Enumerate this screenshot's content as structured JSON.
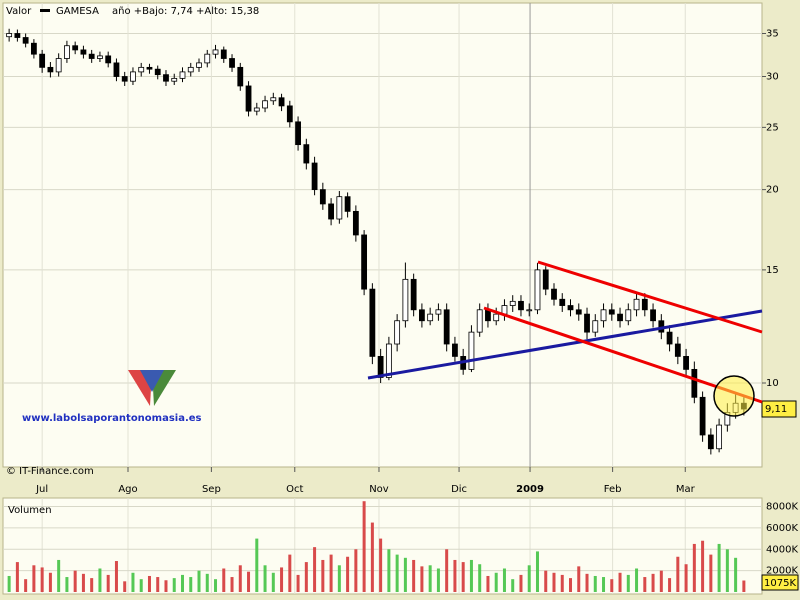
{
  "chart_data": [
    {
      "type": "candlestick",
      "title": "Valor",
      "series_name": "GAMESA",
      "subtitle": "año +Bajo: 7,74 +Alto: 15,38",
      "annotations": [
        "© IT-Finance.com",
        "www.labolsaporantonomasia.es"
      ],
      "log_scale": true,
      "grid": true,
      "xlim": [
        0,
        90
      ],
      "xticks": [
        {
          "value": 4.5,
          "label": "Jul"
        },
        {
          "value": 14.9,
          "label": "Ago"
        },
        {
          "value": 25,
          "label": "Sep"
        },
        {
          "value": 35.1,
          "label": "Oct"
        },
        {
          "value": 45.3,
          "label": "Nov"
        },
        {
          "value": 55,
          "label": "Dic"
        },
        {
          "value": 63.6,
          "label": "2009"
        },
        {
          "value": 73.6,
          "label": "Feb"
        },
        {
          "value": 82.4,
          "label": "Mar"
        }
      ],
      "ylim": [
        7.4,
        37
      ],
      "yticks": [
        10,
        15,
        20,
        25,
        30,
        35
      ],
      "open": [
        34.6,
        35,
        34.5,
        33.8,
        32.5,
        31,
        30.5,
        32,
        33.5,
        33,
        32.5,
        32,
        32.3,
        31.5,
        30,
        29.5,
        30.5,
        31,
        30.8,
        30.2,
        29.5,
        29.8,
        30.5,
        31,
        31.5,
        32.5,
        33,
        32,
        31,
        29,
        26.5,
        26.8,
        27.5,
        27.8,
        27,
        25.5,
        23.5,
        22,
        20,
        19,
        18,
        19.5,
        18.5,
        17,
        14,
        11,
        10.2,
        11.5,
        12.5,
        14.5,
        13,
        12.5,
        12.8,
        13,
        11.5,
        11,
        10.5,
        12,
        13,
        12.5,
        12.8,
        13.2,
        13.4,
        13,
        13,
        15,
        14,
        13.5,
        13.2,
        13,
        12.8,
        12,
        12.5,
        13,
        12.8,
        12.5,
        13,
        13.5,
        13,
        12.5,
        12,
        11.5,
        11,
        10.5,
        9.5,
        8.3,
        7.9,
        8.6,
        9,
        9.3
      ],
      "high": [
        35.6,
        35.5,
        35,
        34.3,
        33,
        31.6,
        32.6,
        34.1,
        34,
        33.5,
        33,
        32.8,
        32.8,
        32,
        30.5,
        31,
        31.5,
        31.4,
        31.2,
        30.7,
        30.3,
        31,
        31.5,
        32,
        33,
        33.6,
        33.4,
        32.5,
        31.5,
        29.5,
        27.3,
        28,
        28.3,
        28.2,
        27.5,
        26,
        24,
        22.5,
        20.5,
        19.4,
        19.9,
        19.8,
        18.9,
        17.3,
        14.3,
        11.3,
        11.8,
        12.8,
        15.4,
        14.8,
        13.3,
        13.1,
        13.3,
        13.3,
        11.8,
        11.3,
        12.3,
        13.3,
        13.3,
        13.1,
        13.5,
        13.7,
        13.7,
        13.3,
        15.38,
        15.2,
        14.3,
        13.8,
        13.5,
        13.3,
        13.1,
        12.8,
        13.3,
        13.3,
        13.1,
        13.3,
        13.8,
        13.8,
        13.3,
        12.8,
        12.3,
        11.8,
        11.3,
        10.8,
        9.7,
        8.5,
        8.8,
        9.3,
        9.6,
        9.5
      ],
      "low": [
        34,
        34,
        33.3,
        32,
        30.4,
        29.9,
        30,
        31.5,
        32.5,
        32,
        31.5,
        31.6,
        31,
        29.5,
        29,
        29.1,
        30,
        30.3,
        29.7,
        29,
        29.1,
        29.4,
        30,
        30.5,
        31,
        32,
        31.5,
        30.5,
        28.5,
        26,
        26.1,
        26.4,
        27.1,
        26.5,
        25,
        23,
        21.5,
        19.6,
        18.6,
        17.6,
        17.7,
        18.1,
        16.6,
        13.7,
        10.7,
        10,
        10.1,
        11.2,
        12.2,
        12.7,
        12.2,
        12.3,
        12.5,
        11.2,
        10.8,
        10.3,
        10.4,
        11.8,
        12.2,
        12.3,
        12.5,
        12.9,
        12.7,
        12.7,
        12.8,
        13.7,
        13.2,
        12.9,
        12.7,
        12.5,
        11.7,
        11.8,
        12.2,
        12.5,
        12.2,
        12.3,
        12.7,
        12.7,
        12.2,
        11.7,
        11.2,
        10.7,
        10.2,
        9.3,
        8.1,
        7.74,
        7.8,
        8.4,
        8.8,
        8.9
      ],
      "close": [
        35,
        34.5,
        33.8,
        32.5,
        31,
        30.5,
        32,
        33.5,
        33,
        32.5,
        32,
        32.3,
        31.5,
        30,
        29.5,
        30.5,
        31,
        30.8,
        30.2,
        29.5,
        29.8,
        30.5,
        31,
        31.5,
        32.5,
        33,
        32,
        31,
        29,
        26.5,
        26.8,
        27.5,
        27.8,
        27,
        25.5,
        23.5,
        22,
        20,
        19,
        18,
        19.5,
        18.5,
        17,
        14,
        11,
        10.2,
        11.5,
        12.5,
        14.5,
        13,
        12.5,
        12.8,
        13,
        11.5,
        11,
        10.5,
        12,
        13,
        12.5,
        12.8,
        13.2,
        13.4,
        13,
        13,
        15,
        14,
        13.5,
        13.2,
        13,
        12.8,
        12,
        12.5,
        13,
        12.8,
        12.5,
        13,
        13.5,
        13,
        12.5,
        12,
        11.5,
        11,
        10.5,
        9.5,
        8.3,
        7.9,
        8.6,
        9,
        9.3,
        9.11
      ],
      "up_color": "#ffffff",
      "down_color": "#000000",
      "price_marker": {
        "value": 9.11,
        "label": "9,11"
      }
    },
    {
      "type": "bar",
      "title": "Volumen",
      "up_color": "#55c855",
      "down_color": "#d84a4a",
      "ylim": [
        0,
        8800
      ],
      "yticks": [
        {
          "value": 2000,
          "label": "2000K"
        },
        {
          "value": 4000,
          "label": "4000K"
        },
        {
          "value": 6000,
          "label": "6000K"
        },
        {
          "value": 8000,
          "label": "8000K"
        }
      ],
      "values": [
        1500,
        2800,
        1200,
        2500,
        2300,
        1800,
        3000,
        1400,
        2000,
        1700,
        1300,
        2200,
        1600,
        2900,
        1000,
        1800,
        1200,
        1500,
        1400,
        1100,
        1300,
        1600,
        1400,
        2000,
        1700,
        1200,
        2200,
        1400,
        2500,
        1900,
        5000,
        2500,
        1800,
        2300,
        3500,
        1600,
        2800,
        4200,
        3000,
        3500,
        2500,
        3300,
        4000,
        8500,
        6500,
        5000,
        4000,
        3500,
        3200,
        3000,
        2400,
        2500,
        2200,
        4000,
        3000,
        2800,
        3000,
        2600,
        1500,
        1800,
        2200,
        1200,
        1600,
        2500,
        3800,
        2000,
        1800,
        1600,
        1300,
        2400,
        1700,
        1500,
        1400,
        1200,
        1800,
        1600,
        2200,
        1400,
        1700,
        2000,
        1300,
        3300,
        2600,
        4500,
        4800,
        3500,
        4500,
        4000,
        3200,
        1075
      ],
      "volume_marker": {
        "value": 1075,
        "label": "1075K"
      }
    }
  ]
}
